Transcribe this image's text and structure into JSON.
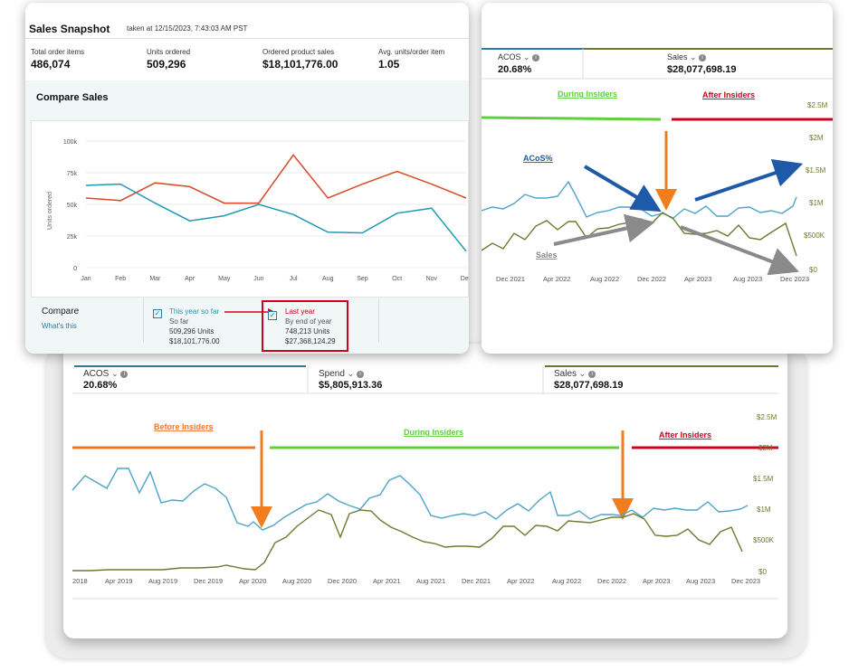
{
  "snapshot": {
    "title": "Sales Snapshot",
    "taken": "taken at 12/15/2023, 7:43:03 AM PST",
    "metrics": [
      {
        "label": "Total order items",
        "value": "486,074"
      },
      {
        "label": "Units ordered",
        "value": "509,296"
      },
      {
        "label": "Ordered product sales",
        "value": "$18,101,776.00"
      },
      {
        "label": "Avg. units/order item",
        "value": "1.05"
      }
    ],
    "compare_title": "Compare Sales",
    "compare_label": "Compare",
    "whats_this": "What's this",
    "legend": [
      {
        "name": "This year so far",
        "sub": "So far",
        "units": "509,296 Units",
        "sales": "$18,101,776.00",
        "color": "#1d9bb2"
      },
      {
        "name": "Last year",
        "sub": "By end of year",
        "units": "748,213 Units",
        "sales": "$27,368,124.29",
        "color": "#d94a26"
      }
    ]
  },
  "compare_chart": {
    "type": "line",
    "ylabel": "Units ordered",
    "y_ticks": [
      "0",
      "25k",
      "50k",
      "75k",
      "100k"
    ],
    "categories": [
      "Jan",
      "Feb",
      "Mar",
      "Apr",
      "May",
      "Jun",
      "Jul",
      "Aug",
      "Sep",
      "Oct",
      "Nov",
      "Dec"
    ],
    "ylim": [
      0,
      100000
    ]
  },
  "right_panel": {
    "metrics": [
      {
        "label": "ACOS",
        "value": "20.68%"
      },
      {
        "label": "Sales",
        "value": "$28,077,698.19"
      }
    ],
    "phase_labels": [
      "During Insiders",
      "After Insiders"
    ],
    "annotation_acos": "ACoS%",
    "annotation_sales": "Sales",
    "x_ticks": [
      "Dec 2021",
      "Apr 2022",
      "Aug 2022",
      "Dec 2022",
      "Apr 2023",
      "Aug 2023",
      "Dec 2023"
    ],
    "y_ticks": [
      "$2.5M",
      "$2M",
      "$1.5M",
      "$1M",
      "$500K",
      "$0"
    ]
  },
  "bottom_panel": {
    "metrics": [
      {
        "label": "ACOS",
        "value": "20.68%"
      },
      {
        "label": "Spend",
        "value": "$5,805,913.36"
      },
      {
        "label": "Sales",
        "value": "$28,077,698.19"
      }
    ],
    "phase_labels": [
      "Before Insiders",
      "During Insiders",
      "After Insiders"
    ],
    "x_ticks": [
      "2018",
      "Apr 2019",
      "Aug 2019",
      "Dec 2019",
      "Apr 2020",
      "Aug 2020",
      "Dec 2020",
      "Apr 2021",
      "Aug 2021",
      "Dec 2021",
      "Apr 2022",
      "Aug 2022",
      "Dec 2022",
      "Apr 2023",
      "Aug 2023",
      "Dec 2023"
    ],
    "y_ticks": [
      "$2.5M",
      "$2M",
      "$1.5M",
      "$1M",
      "$500K",
      "$0"
    ]
  },
  "colors": {
    "acos_line": "#4ea3c8",
    "sales_line": "#6b7a32",
    "before": "#f0752a",
    "during": "#5ed03a",
    "after": "#d0021b",
    "this_year": "#1d9bb2",
    "last_year": "#d94a26",
    "arrow_blue": "#1f5aa8",
    "arrow_gray": "#8a8a8a",
    "arrow_orange": "#f07d1e"
  }
}
